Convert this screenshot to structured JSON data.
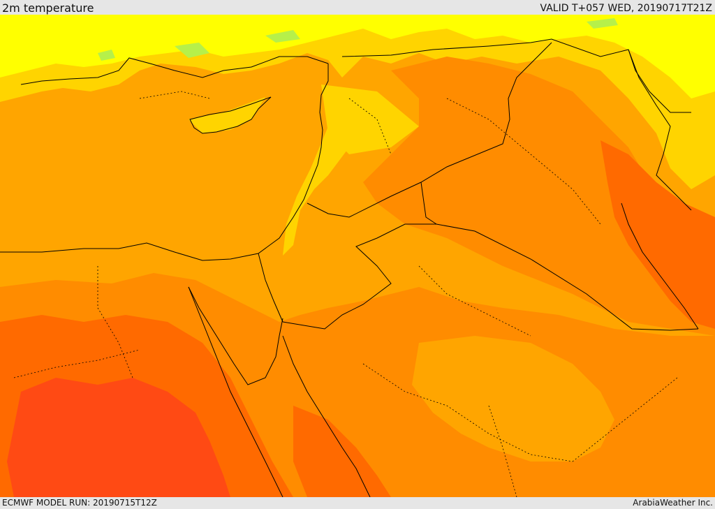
{
  "header": {
    "title": "2m temperature",
    "valid": "VALID T+057 WED, 20190717T21Z"
  },
  "footer": {
    "run": "ECMWF MODEL RUN: 20190715T12Z",
    "credit": "ArabiaWeather Inc."
  },
  "colors": {
    "band_lightgreen": "#b6f04a",
    "band_yellow": "#ffff00",
    "band_goldyellow": "#ffd400",
    "band_lightorange": "#ffa500",
    "band_orange": "#ff8c00",
    "band_darkorange": "#ff6a00",
    "band_red": "#ff4a14",
    "coastline": "#000000",
    "border": "#000000"
  }
}
